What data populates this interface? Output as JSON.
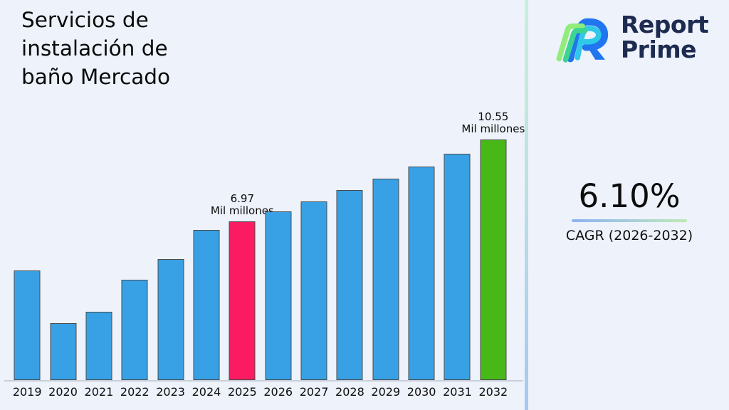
{
  "page": {
    "background": "#edf2fb"
  },
  "title": {
    "lines": [
      "Servicios de",
      "instalación de",
      "baño Mercado"
    ],
    "full": "Servicios de instalación de baño Mercado"
  },
  "logo": {
    "line1": "Report",
    "line2": "Prime",
    "navy": "#1e2b50"
  },
  "kpi": {
    "value": "6.10%",
    "label": "CAGR (2026-2032)"
  },
  "chart_data": {
    "type": "bar",
    "title": "Servicios de instalación de baño Mercado",
    "xlabel": "",
    "ylabel": "",
    "unit": "Mil millones",
    "ylim": [
      0,
      11.5
    ],
    "grid": false,
    "legend": false,
    "colors": {
      "blue": "#38a1e5",
      "pink": "#fb1b63",
      "green": "#47b818"
    },
    "categories": [
      "2019",
      "2020",
      "2021",
      "2022",
      "2023",
      "2024",
      "2025",
      "2026",
      "2027",
      "2028",
      "2029",
      "2030",
      "2031",
      "2032"
    ],
    "values": [
      4.8,
      2.5,
      3.0,
      4.4,
      5.3,
      6.6,
      6.97,
      7.4,
      7.85,
      8.33,
      8.84,
      9.38,
      9.95,
      10.55
    ],
    "bars": [
      {
        "year": "2019",
        "value": 4.8,
        "color": "blue"
      },
      {
        "year": "2020",
        "value": 2.5,
        "color": "blue"
      },
      {
        "year": "2021",
        "value": 3.0,
        "color": "blue"
      },
      {
        "year": "2022",
        "value": 4.4,
        "color": "blue"
      },
      {
        "year": "2023",
        "value": 5.3,
        "color": "blue"
      },
      {
        "year": "2024",
        "value": 6.6,
        "color": "blue"
      },
      {
        "year": "2025",
        "value": 6.97,
        "color": "pink",
        "label": "6.97",
        "label_unit": "Mil millones"
      },
      {
        "year": "2026",
        "value": 7.4,
        "color": "blue"
      },
      {
        "year": "2027",
        "value": 7.85,
        "color": "blue"
      },
      {
        "year": "2028",
        "value": 8.33,
        "color": "blue"
      },
      {
        "year": "2029",
        "value": 8.84,
        "color": "blue"
      },
      {
        "year": "2030",
        "value": 9.38,
        "color": "blue"
      },
      {
        "year": "2031",
        "value": 9.95,
        "color": "blue"
      },
      {
        "year": "2032",
        "value": 10.55,
        "color": "green",
        "label": "10.55",
        "label_unit": "Mil millones"
      }
    ]
  }
}
